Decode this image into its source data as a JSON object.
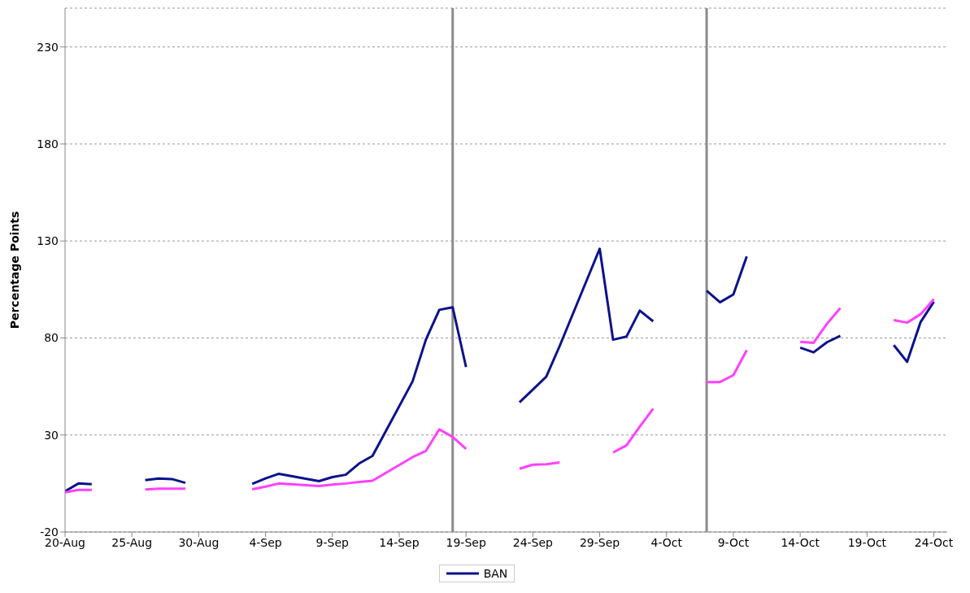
{
  "chart_data": {
    "type": "line",
    "ylabel": "Percentage Points",
    "x": [
      "--08-20",
      "--08-21",
      "--08-22",
      "--08-25",
      "--08-26",
      "--08-27",
      "--08-28",
      "--08-29",
      "--09-02",
      "--09-03",
      "--09-04",
      "--09-05",
      "--09-08",
      "--09-09",
      "--09-10",
      "--09-11",
      "--09-12",
      "--09-15",
      "--09-16",
      "--09-17",
      "--09-18",
      "--09-19",
      "--09-22",
      "--09-23",
      "--09-24",
      "--09-25",
      "--09-26",
      "--09-29",
      "--09-30",
      "--10-01",
      "--10-02",
      "--10-03",
      "--10-06",
      "--10-07",
      "--10-08",
      "--10-09",
      "--10-10",
      "--10-13",
      "--10-14",
      "--10-15",
      "--10-16",
      "--10-17",
      "--10-20",
      "--10-21",
      "--10-22",
      "--10-23",
      "--10-24"
    ],
    "series": [
      {
        "name": "BAN",
        "color": "#0b128c",
        "values": [
          1,
          5,
          4.6,
          null,
          6.7,
          7.6,
          7.3,
          5.3,
          null,
          4.8,
          7.6,
          10,
          6.2,
          8.3,
          9.5,
          15.3,
          19.2,
          57.6,
          79.2,
          94.5,
          95.8,
          65,
          null,
          46.8,
          53.4,
          60,
          75.8,
          126,
          79.1,
          80.7,
          94.1,
          88.6,
          null,
          104.4,
          98.4,
          102.4,
          122,
          null,
          75,
          72.6,
          77.8,
          81.1,
          null,
          76.3,
          67.7,
          88.1,
          98.7
        ]
      },
      {
        "color": "#ff40ff",
        "values": [
          0.4,
          1.7,
          1.7,
          null,
          1.9,
          2.3,
          2.3,
          2.3,
          null,
          2,
          3.4,
          5,
          3.7,
          4.4,
          5,
          5.8,
          6.4,
          18.6,
          21.8,
          32.9,
          29,
          22.8,
          null,
          12.6,
          14.7,
          14.9,
          15.8,
          null,
          21,
          24.6,
          34.3,
          43.6,
          null,
          57.3,
          57.3,
          60.8,
          73.7,
          null,
          78,
          77.5,
          87.3,
          95.4,
          null,
          89.2,
          87.9,
          92.2,
          100
        ]
      }
    ],
    "xlim": [
      "--08-20",
      "--10-25"
    ],
    "xticks": [
      {
        "value": "--08-20",
        "label": "20-Aug"
      },
      {
        "value": "--08-25",
        "label": "25-Aug"
      },
      {
        "value": "--08-30",
        "label": "30-Aug"
      },
      {
        "value": "--09-04",
        "label": "4-Sep"
      },
      {
        "value": "--09-09",
        "label": "9-Sep"
      },
      {
        "value": "--09-14",
        "label": "14-Sep"
      },
      {
        "value": "--09-19",
        "label": "19-Sep"
      },
      {
        "value": "--09-24",
        "label": "24-Sep"
      },
      {
        "value": "--09-29",
        "label": "29-Sep"
      },
      {
        "value": "--10-04",
        "label": "4-Oct"
      },
      {
        "value": "--10-09",
        "label": "9-Oct"
      },
      {
        "value": "--10-14",
        "label": "14-Oct"
      },
      {
        "value": "--10-19",
        "label": "19-Oct"
      },
      {
        "value": "--10-24",
        "label": "24-Oct"
      }
    ],
    "ylim": [
      -20,
      250
    ],
    "yticks": [
      -20,
      30,
      80,
      130,
      180,
      230
    ],
    "ref_lines": [
      {
        "axis": "x",
        "value": "--09-18",
        "color": "#8c8c8c"
      },
      {
        "axis": "x",
        "value": "--10-07",
        "color": "#8c8c8c"
      }
    ],
    "grid": "y",
    "legend": "bottom",
    "marker": "none",
    "line_style": "solid"
  }
}
